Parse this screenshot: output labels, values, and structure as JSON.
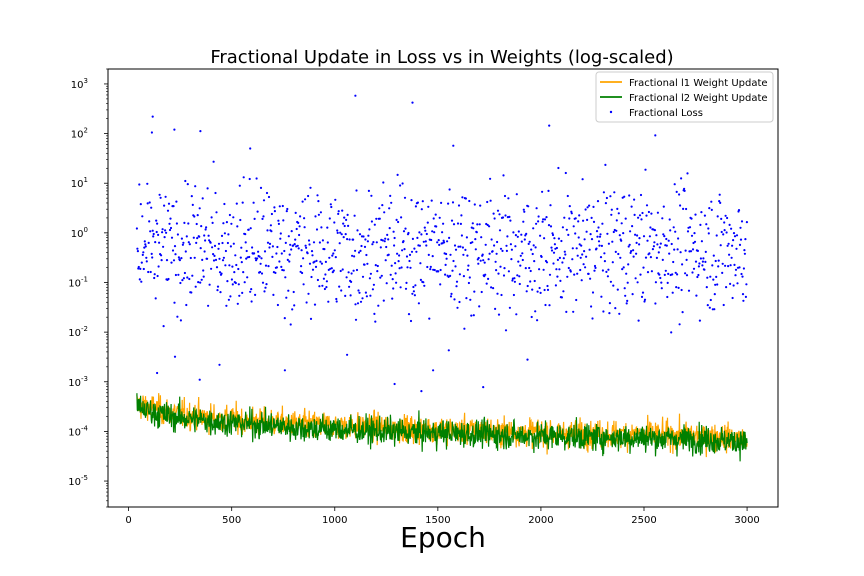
{
  "chart_data": {
    "type": "line",
    "title": "Fractional Update in Loss vs in Weights (log-scaled)",
    "xlabel": "Epoch",
    "ylabel": "",
    "y_scale": "log",
    "xlim": [
      -100,
      3150
    ],
    "ylim": [
      3e-06,
      2000
    ],
    "x_ticks": [
      0,
      500,
      1000,
      1500,
      2000,
      2500,
      3000
    ],
    "y_ticks": [
      {
        "value": 1e-05,
        "base": "10",
        "exp": "-5"
      },
      {
        "value": 0.0001,
        "base": "10",
        "exp": "-4"
      },
      {
        "value": 0.001,
        "base": "10",
        "exp": "-3"
      },
      {
        "value": 0.01,
        "base": "10",
        "exp": "-2"
      },
      {
        "value": 0.1,
        "base": "10",
        "exp": "-1"
      },
      {
        "value": 1,
        "base": "10",
        "exp": "0"
      },
      {
        "value": 10,
        "base": "10",
        "exp": "1"
      },
      {
        "value": 100,
        "base": "10",
        "exp": "2"
      },
      {
        "value": 1000,
        "base": "10",
        "exp": "3"
      }
    ],
    "grid": false,
    "legend_position": "upper right",
    "x_range": [
      40,
      3000
    ],
    "series": [
      {
        "name": "Fractional l1 Weight Update",
        "kind": "line",
        "color": "#FFA500",
        "x": [
          40,
          200,
          400,
          600,
          800,
          1000,
          1200,
          1400,
          1600,
          1800,
          2000,
          2200,
          2400,
          2600,
          2800,
          3000
        ],
        "values": [
          0.00035,
          0.00024,
          0.00019,
          0.00016,
          0.00014,
          0.00013,
          0.00012,
          0.00011,
          0.000105,
          0.0001,
          9.5e-05,
          9e-05,
          8.8e-05,
          8.5e-05,
          8e-05,
          7e-05
        ]
      },
      {
        "name": "Fractional l2 Weight Update",
        "kind": "line",
        "color": "#008000",
        "x": [
          40,
          200,
          400,
          600,
          800,
          1000,
          1200,
          1400,
          1600,
          1800,
          2000,
          2200,
          2400,
          2600,
          2800,
          3000
        ],
        "values": [
          0.0003,
          0.0002,
          0.00016,
          0.00014,
          0.00012,
          0.00011,
          0.0001,
          9.5e-05,
          9e-05,
          8.5e-05,
          8e-05,
          7.8e-05,
          7.5e-05,
          7.2e-05,
          7e-05,
          6e-05
        ]
      },
      {
        "name": "Fractional Loss",
        "kind": "scatter",
        "color": "#0000FF",
        "x": [
          40,
          200,
          400,
          600,
          800,
          1000,
          1200,
          1400,
          1600,
          1800,
          2000,
          2200,
          2400,
          2600,
          2800,
          3000
        ],
        "values": [
          0.4,
          0.45,
          0.5,
          0.5,
          0.45,
          0.4,
          0.45,
          0.5,
          0.5,
          0.45,
          0.4,
          0.45,
          0.5,
          0.5,
          0.45,
          0.5
        ],
        "outliers": [
          {
            "x": 117,
            "y": 220
          },
          {
            "x": 113,
            "y": 105
          },
          {
            "x": 222,
            "y": 120
          },
          {
            "x": 348,
            "y": 112
          },
          {
            "x": 1100,
            "y": 580
          },
          {
            "x": 1377,
            "y": 420
          },
          {
            "x": 2040,
            "y": 145
          },
          {
            "x": 2555,
            "y": 92
          },
          {
            "x": 1575,
            "y": 57
          },
          {
            "x": 590,
            "y": 50
          },
          {
            "x": 1060,
            "y": 0.0035
          },
          {
            "x": 1290,
            "y": 0.0009
          },
          {
            "x": 1420,
            "y": 0.00065
          },
          {
            "x": 1720,
            "y": 0.00078
          },
          {
            "x": 1935,
            "y": 0.0028
          },
          {
            "x": 345,
            "y": 0.0011
          },
          {
            "x": 758,
            "y": 0.0017
          },
          {
            "x": 225,
            "y": 0.0032
          },
          {
            "x": 441,
            "y": 0.0022
          },
          {
            "x": 1553,
            "y": 0.0043
          },
          {
            "x": 1477,
            "y": 0.0017
          },
          {
            "x": 138,
            "y": 0.0015
          }
        ]
      }
    ]
  }
}
